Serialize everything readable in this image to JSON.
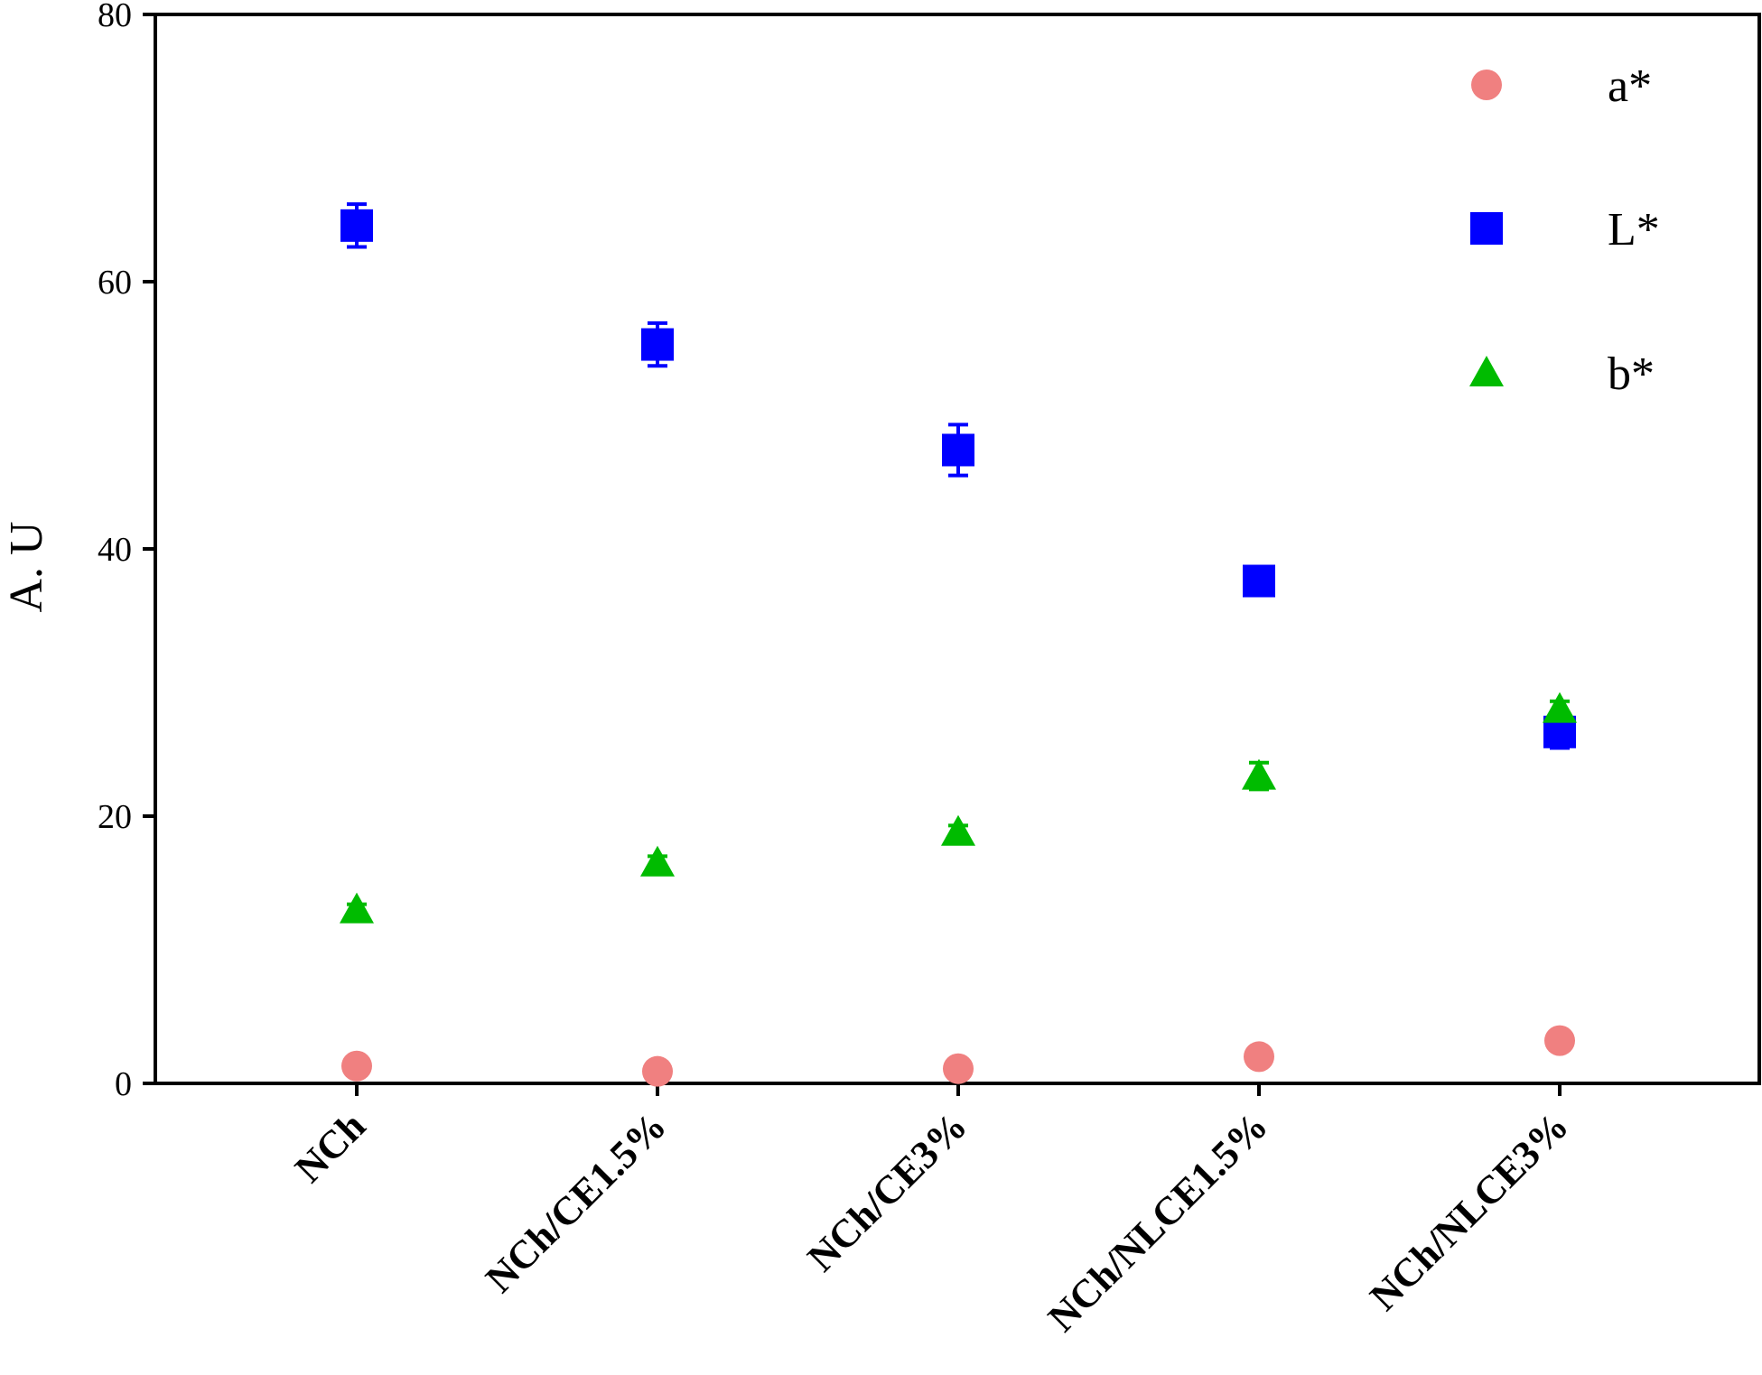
{
  "chart_data": {
    "type": "scatter",
    "ylabel": "A. U",
    "xlabel": "",
    "ylim": [
      0,
      80
    ],
    "yticks": [
      0,
      20,
      40,
      60,
      80
    ],
    "categories": [
      "NCh",
      "NCh/CE1.5%",
      "NCh/CE3%",
      "NCh/NLCE1.5%",
      "NCh/NLCE3%"
    ],
    "legend_position": "top-right",
    "grid": false,
    "series": [
      {
        "name": "a*",
        "marker": "circle",
        "color": "#f08080",
        "values": [
          1.3,
          0.9,
          1.1,
          2.0,
          3.2
        ],
        "errors": [
          0,
          0,
          0,
          0,
          0
        ]
      },
      {
        "name": "L*",
        "marker": "square",
        "color": "#0000ff",
        "values": [
          64.2,
          55.3,
          47.4,
          37.6,
          26.3
        ],
        "errors": [
          1.6,
          1.6,
          1.9,
          1.0,
          1.2
        ]
      },
      {
        "name": "b*",
        "marker": "triangle",
        "color": "#00bb00",
        "values": [
          13.0,
          16.5,
          18.8,
          23.0,
          28.0
        ],
        "errors": [
          0.4,
          0.5,
          0.5,
          1.0,
          0.6
        ]
      }
    ]
  }
}
